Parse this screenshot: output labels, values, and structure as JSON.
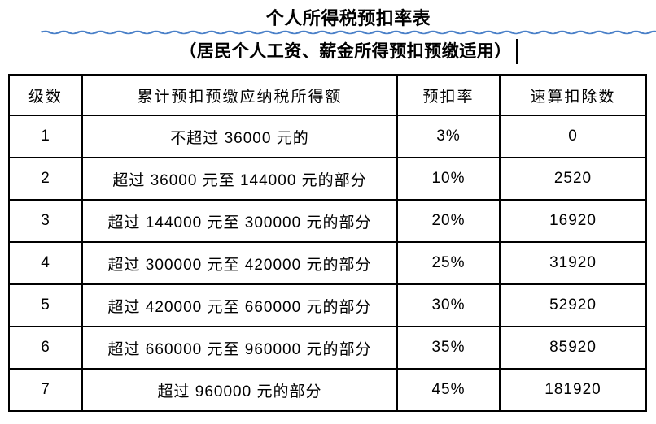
{
  "document": {
    "title": "个人所得税预扣率表",
    "subtitle": "（居民个人工资、薪金所得预扣预缴适用）"
  },
  "table": {
    "headers": [
      "级数",
      "累计预扣预缴应纳税所得额",
      "预扣率",
      "速算扣除数"
    ],
    "rows": [
      [
        "1",
        "不超过 36000 元的",
        "3%",
        "0"
      ],
      [
        "2",
        "超过 36000 元至 144000 元的部分",
        "10%",
        "2520"
      ],
      [
        "3",
        "超过 144000 元至 300000 元的部分",
        "20%",
        "16920"
      ],
      [
        "4",
        "超过 300000 元至 420000 元的部分",
        "25%",
        "31920"
      ],
      [
        "5",
        "超过 420000 元至 660000 元的部分",
        "30%",
        "52920"
      ],
      [
        "6",
        "超过 660000 元至 960000 元的部分",
        "35%",
        "85920"
      ],
      [
        "7",
        "超过 960000 元的部分",
        "45%",
        "181920"
      ]
    ]
  },
  "colors": {
    "text": "#000000",
    "border": "#000000",
    "background": "#ffffff",
    "spellcheck_squiggle": "#4a80c8"
  }
}
